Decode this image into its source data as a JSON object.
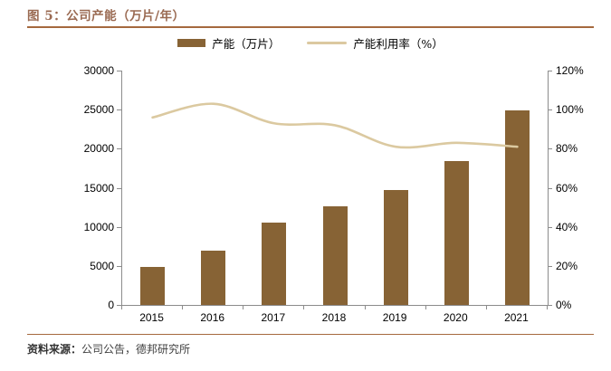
{
  "figure": {
    "title": "图 5：公司产能（万片/年）",
    "source_label": "资料来源：",
    "source_text": "公司公告，德邦研究所"
  },
  "colors": {
    "bar": "#876335",
    "line": "#dbc9a0",
    "accent_title": "#9a6a52",
    "rule": "#a5693e",
    "axis": "#8c8c8c",
    "text": "#000000"
  },
  "chart_data": {
    "type": "bar+line combo",
    "categories": [
      "2015",
      "2016",
      "2017",
      "2018",
      "2019",
      "2020",
      "2021"
    ],
    "series": [
      {
        "name": "产能（万片）",
        "type": "bar",
        "axis": "left",
        "values": [
          4900,
          7000,
          10600,
          12600,
          14700,
          18400,
          24900
        ]
      },
      {
        "name": "产能利用率（%）",
        "type": "line",
        "axis": "right",
        "values": [
          96,
          103,
          93,
          92,
          81,
          83,
          81
        ]
      }
    ],
    "left_axis": {
      "min": 0,
      "max": 30000,
      "step": 5000,
      "ticks": [
        "0",
        "5000",
        "10000",
        "15000",
        "20000",
        "25000",
        "30000"
      ]
    },
    "right_axis": {
      "min": 0,
      "max": 120,
      "step": 20,
      "ticks": [
        "0%",
        "20%",
        "40%",
        "60%",
        "80%",
        "100%",
        "120%"
      ]
    },
    "grid": false,
    "legend_position": "top-center"
  }
}
